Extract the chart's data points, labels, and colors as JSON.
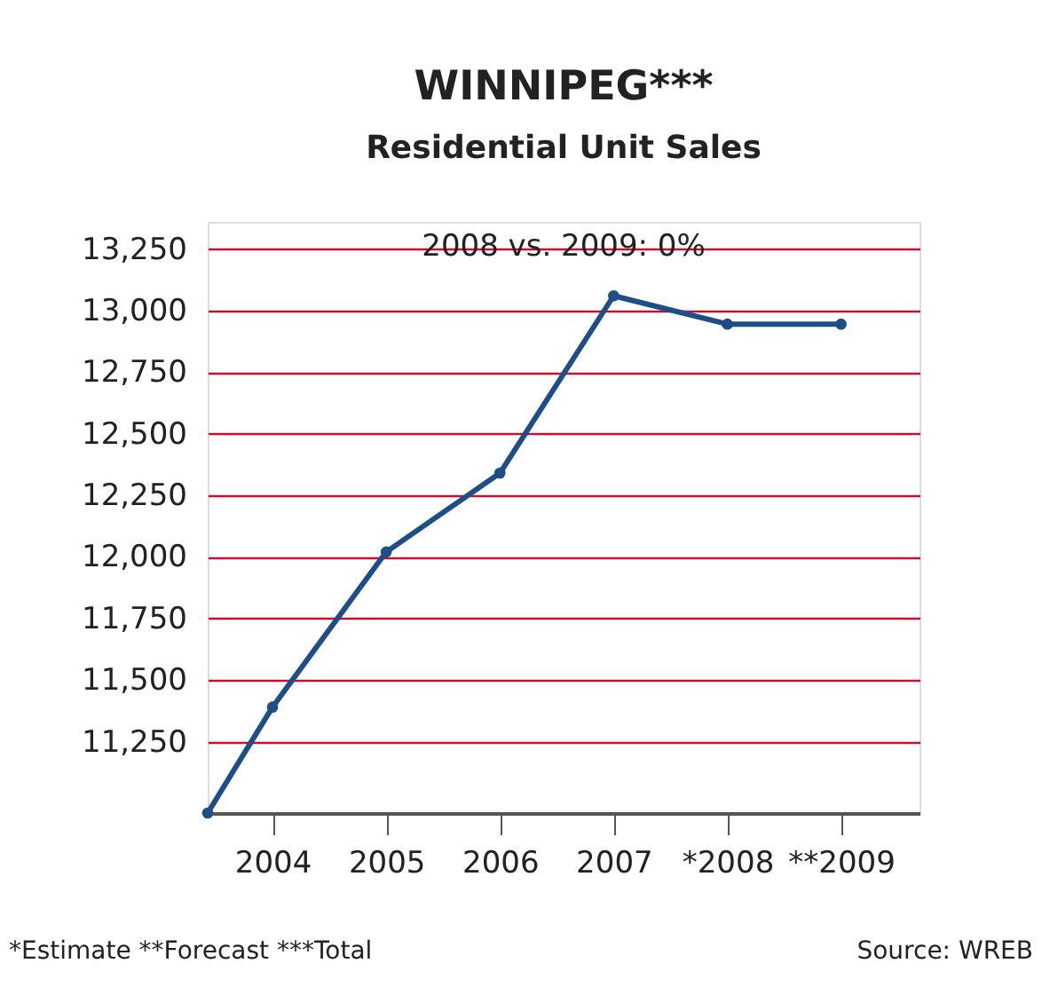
{
  "chart_data": {
    "type": "line",
    "title": "WINNIPEG***",
    "subtitle": "Residential Unit Sales",
    "x": [
      2003.43,
      2004,
      2005,
      2006,
      2007,
      2008,
      2009
    ],
    "series": [
      {
        "color": "#1d4f86",
        "values": [
          10960,
          11390,
          12020,
          12340,
          13060,
          12945,
          12945
        ]
      }
    ],
    "xlim": [
      2003.43,
      2009.69
    ],
    "xticks": [
      2004,
      2005,
      2006,
      2007,
      {
        "value": 2008,
        "label": "*2008"
      },
      {
        "value": 2009,
        "label": "**2009"
      }
    ],
    "ylim": [
      10960,
      13360
    ],
    "yticks": [
      {
        "value": 11250,
        "label": "11,250"
      },
      {
        "value": 11500,
        "label": "11,500"
      },
      {
        "value": 11750,
        "label": "11,750"
      },
      {
        "value": 12000,
        "label": "12,000"
      },
      {
        "value": 12250,
        "label": "12,250"
      },
      {
        "value": 12500,
        "label": "12,500"
      },
      {
        "value": 12750,
        "label": "12,750"
      },
      {
        "value": 13000,
        "label": "13,000"
      },
      {
        "value": 13250,
        "label": "13,250"
      }
    ],
    "grid": "y",
    "marker": "circle",
    "line_style": "solid",
    "annotations": [
      "2008 vs. 2009: 0%",
      "*Estimate **Forecast ***Total",
      "Source: WREB"
    ]
  }
}
